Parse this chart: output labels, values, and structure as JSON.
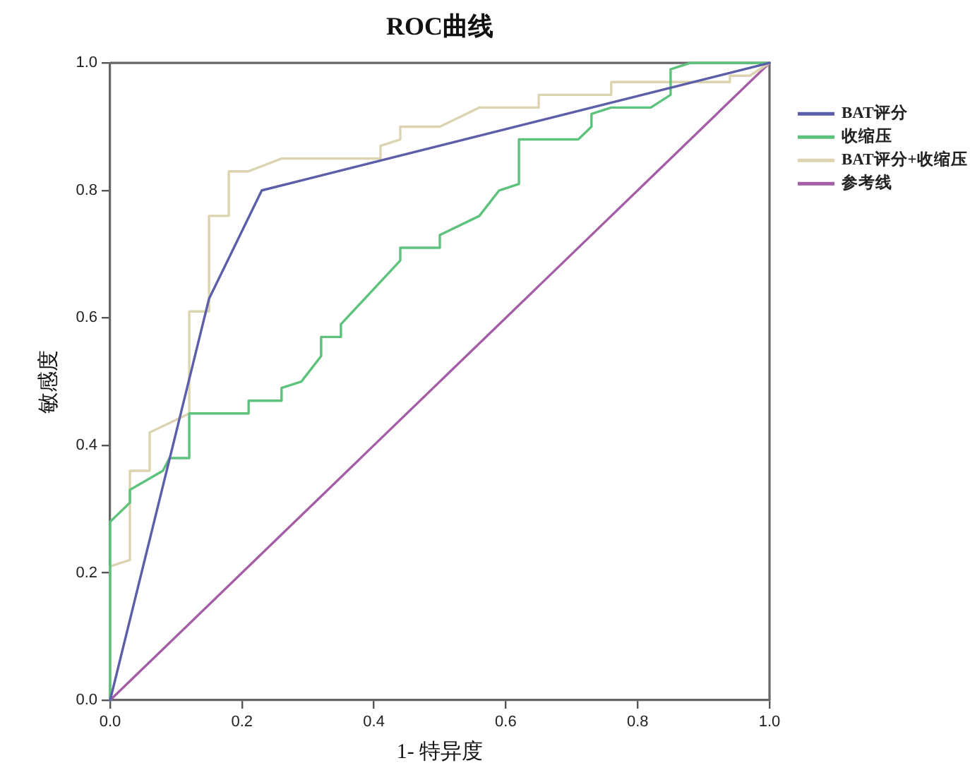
{
  "chart_data": {
    "type": "line",
    "title": "ROC曲线",
    "xlabel": "1- 特异度",
    "ylabel": "敏感度",
    "xlim": [
      0,
      1
    ],
    "ylim": [
      0,
      1
    ],
    "xticks": [
      {
        "value": 0,
        "label": "0.0"
      },
      {
        "value": 0.2,
        "label": "0.2"
      },
      {
        "value": 0.4,
        "label": "0.4"
      },
      {
        "value": 0.6,
        "label": "0.6"
      },
      {
        "value": 0.8,
        "label": "0.8"
      },
      {
        "value": 1,
        "label": "1.0"
      }
    ],
    "yticks": [
      {
        "value": 0,
        "label": "0.0"
      },
      {
        "value": 0.2,
        "label": "0.2"
      },
      {
        "value": 0.4,
        "label": "0.4"
      },
      {
        "value": 0.6,
        "label": "0.6"
      },
      {
        "value": 0.8,
        "label": "0.8"
      },
      {
        "value": 1,
        "label": "1.0"
      }
    ],
    "grid": false,
    "legend": "top right",
    "marker": "none",
    "line_style": "solid",
    "series": [
      {
        "name": "BAT评分",
        "color": "#5b5ea8",
        "x": [
          0,
          0.15,
          0.23,
          1
        ],
        "values": [
          0,
          0.63,
          0.8,
          1
        ]
      },
      {
        "name": "收缩压",
        "color": "#5cc27c",
        "x": [
          0,
          0,
          0.03,
          0.03,
          0.08,
          0.09,
          0.12,
          0.12,
          0.21,
          0.21,
          0.26,
          0.26,
          0.29,
          0.32,
          0.32,
          0.35,
          0.35,
          0.44,
          0.44,
          0.5,
          0.5,
          0.56,
          0.59,
          0.62,
          0.62,
          0.71,
          0.73,
          0.73,
          0.76,
          0.82,
          0.85,
          0.85,
          0.88,
          1
        ],
        "values": [
          0,
          0.28,
          0.31,
          0.33,
          0.36,
          0.38,
          0.38,
          0.45,
          0.45,
          0.47,
          0.47,
          0.49,
          0.5,
          0.54,
          0.57,
          0.57,
          0.59,
          0.69,
          0.71,
          0.71,
          0.73,
          0.76,
          0.8,
          0.81,
          0.88,
          0.88,
          0.9,
          0.92,
          0.93,
          0.93,
          0.95,
          0.99,
          1,
          1
        ]
      },
      {
        "name": "BAT评分+收缩压",
        "color": "#dcd4b0",
        "x": [
          0,
          0,
          0.03,
          0.03,
          0.06,
          0.06,
          0.12,
          0.12,
          0.15,
          0.15,
          0.18,
          0.18,
          0.21,
          0.26,
          0.41,
          0.41,
          0.44,
          0.44,
          0.5,
          0.56,
          0.65,
          0.65,
          0.76,
          0.76,
          0.94,
          0.94,
          0.97,
          1
        ],
        "values": [
          0,
          0.21,
          0.22,
          0.36,
          0.36,
          0.42,
          0.45,
          0.61,
          0.61,
          0.76,
          0.76,
          0.83,
          0.83,
          0.85,
          0.85,
          0.87,
          0.88,
          0.9,
          0.9,
          0.93,
          0.93,
          0.95,
          0.95,
          0.97,
          0.97,
          0.98,
          0.98,
          1
        ]
      },
      {
        "name": "参考线",
        "color": "#a35ea6",
        "x": [
          0,
          1
        ],
        "values": [
          0,
          1
        ]
      }
    ]
  }
}
